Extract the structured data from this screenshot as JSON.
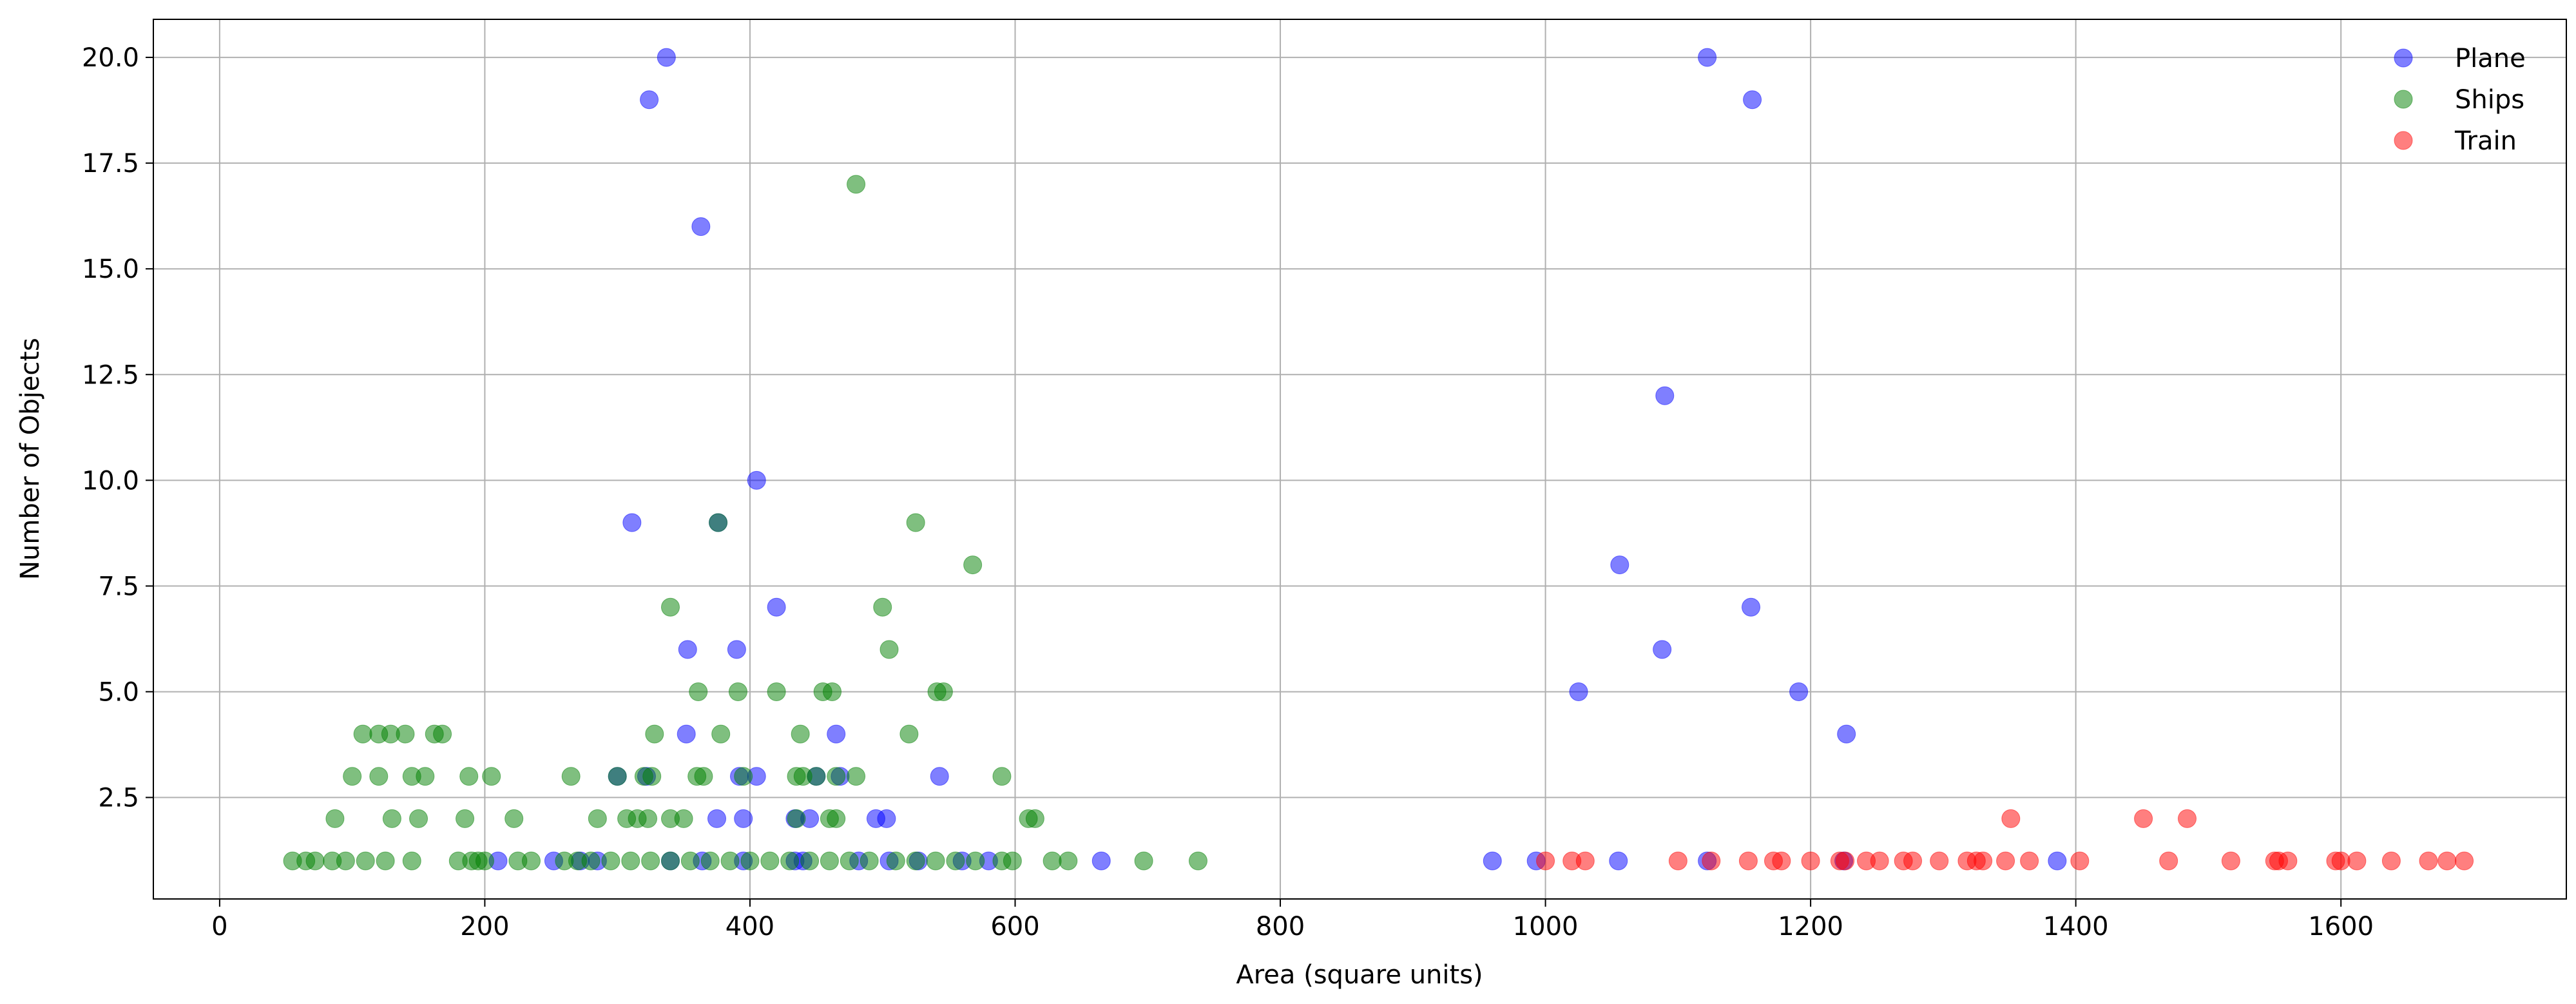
{
  "chart_data": {
    "type": "scatter",
    "xlabel": "Area (square units)",
    "ylabel": "Number of Objects",
    "xlim": [
      -50,
      1770
    ],
    "ylim": [
      0.1,
      20.9
    ],
    "xticks": [
      0,
      200,
      400,
      600,
      800,
      1000,
      1200,
      1400,
      1600
    ],
    "xtick_labels": [
      "0",
      "200",
      "400",
      "600",
      "800",
      "1000",
      "1200",
      "1400",
      "1600"
    ],
    "yticks": [
      2.5,
      5.0,
      7.5,
      10.0,
      12.5,
      15.0,
      17.5,
      20.0
    ],
    "ytick_labels": [
      "2.5",
      "5.0",
      "7.5",
      "10.0",
      "12.5",
      "15.0",
      "17.5",
      "20.0"
    ],
    "grid": true,
    "legend_position": "top-right",
    "series": [
      {
        "name": "Plane",
        "color": "#0000ff",
        "points": [
          [
            337,
            20
          ],
          [
            324,
            19
          ],
          [
            363,
            16
          ],
          [
            405,
            10
          ],
          [
            311,
            9
          ],
          [
            376,
            9
          ],
          [
            420,
            7
          ],
          [
            353,
            6
          ],
          [
            390,
            6
          ],
          [
            352,
            4
          ],
          [
            465,
            4
          ],
          [
            300,
            3
          ],
          [
            322,
            3
          ],
          [
            392,
            3
          ],
          [
            405,
            3
          ],
          [
            450,
            3
          ],
          [
            468,
            3
          ],
          [
            543,
            3
          ],
          [
            395,
            2
          ],
          [
            375,
            2
          ],
          [
            434,
            2
          ],
          [
            445,
            2
          ],
          [
            495,
            2
          ],
          [
            503,
            2
          ],
          [
            210,
            1
          ],
          [
            252,
            1
          ],
          [
            272,
            1
          ],
          [
            285,
            1
          ],
          [
            340,
            1
          ],
          [
            364,
            1
          ],
          [
            395,
            1
          ],
          [
            434,
            1
          ],
          [
            440,
            1
          ],
          [
            482,
            1
          ],
          [
            505,
            1
          ],
          [
            527,
            1
          ],
          [
            560,
            1
          ],
          [
            580,
            1
          ],
          [
            665,
            1
          ],
          [
            1122,
            20
          ],
          [
            1156,
            19
          ],
          [
            1090,
            12
          ],
          [
            1056,
            8
          ],
          [
            1155,
            7
          ],
          [
            1088,
            6
          ],
          [
            1025,
            5
          ],
          [
            1191,
            5
          ],
          [
            1227,
            4
          ],
          [
            960,
            1
          ],
          [
            993,
            1
          ],
          [
            1055,
            1
          ],
          [
            1122,
            1
          ],
          [
            1225,
            1
          ],
          [
            1386,
            1
          ]
        ]
      },
      {
        "name": "Ships",
        "color": "#008000",
        "points": [
          [
            480,
            17
          ],
          [
            525,
            9
          ],
          [
            376,
            9
          ],
          [
            568,
            8
          ],
          [
            340,
            7
          ],
          [
            500,
            7
          ],
          [
            505,
            6
          ],
          [
            361,
            5
          ],
          [
            391,
            5
          ],
          [
            420,
            5
          ],
          [
            455,
            5
          ],
          [
            462,
            5
          ],
          [
            541,
            5
          ],
          [
            546,
            5
          ],
          [
            108,
            4
          ],
          [
            120,
            4
          ],
          [
            129,
            4
          ],
          [
            140,
            4
          ],
          [
            162,
            4
          ],
          [
            168,
            4
          ],
          [
            328,
            4
          ],
          [
            378,
            4
          ],
          [
            438,
            4
          ],
          [
            520,
            4
          ],
          [
            100,
            3
          ],
          [
            120,
            3
          ],
          [
            145,
            3
          ],
          [
            155,
            3
          ],
          [
            188,
            3
          ],
          [
            205,
            3
          ],
          [
            265,
            3
          ],
          [
            300,
            3
          ],
          [
            320,
            3
          ],
          [
            326,
            3
          ],
          [
            360,
            3
          ],
          [
            365,
            3
          ],
          [
            395,
            3
          ],
          [
            435,
            3
          ],
          [
            440,
            3
          ],
          [
            450,
            3
          ],
          [
            465,
            3
          ],
          [
            480,
            3
          ],
          [
            590,
            3
          ],
          [
            87,
            2
          ],
          [
            130,
            2
          ],
          [
            150,
            2
          ],
          [
            185,
            2
          ],
          [
            222,
            2
          ],
          [
            285,
            2
          ],
          [
            307,
            2
          ],
          [
            315,
            2
          ],
          [
            323,
            2
          ],
          [
            340,
            2
          ],
          [
            350,
            2
          ],
          [
            435,
            2
          ],
          [
            460,
            2
          ],
          [
            465,
            2
          ],
          [
            610,
            2
          ],
          [
            615,
            2
          ],
          [
            55,
            1
          ],
          [
            65,
            1
          ],
          [
            72,
            1
          ],
          [
            85,
            1
          ],
          [
            95,
            1
          ],
          [
            110,
            1
          ],
          [
            125,
            1
          ],
          [
            145,
            1
          ],
          [
            180,
            1
          ],
          [
            190,
            1
          ],
          [
            195,
            1
          ],
          [
            200,
            1
          ],
          [
            225,
            1
          ],
          [
            235,
            1
          ],
          [
            260,
            1
          ],
          [
            270,
            1
          ],
          [
            280,
            1
          ],
          [
            295,
            1
          ],
          [
            310,
            1
          ],
          [
            325,
            1
          ],
          [
            340,
            1
          ],
          [
            355,
            1
          ],
          [
            370,
            1
          ],
          [
            385,
            1
          ],
          [
            400,
            1
          ],
          [
            415,
            1
          ],
          [
            430,
            1
          ],
          [
            445,
            1
          ],
          [
            460,
            1
          ],
          [
            475,
            1
          ],
          [
            490,
            1
          ],
          [
            510,
            1
          ],
          [
            525,
            1
          ],
          [
            540,
            1
          ],
          [
            555,
            1
          ],
          [
            570,
            1
          ],
          [
            590,
            1
          ],
          [
            598,
            1
          ],
          [
            628,
            1
          ],
          [
            640,
            1
          ],
          [
            697,
            1
          ],
          [
            738,
            1
          ]
        ]
      },
      {
        "name": "Train",
        "color": "#ff0000",
        "points": [
          [
            1351,
            2
          ],
          [
            1451,
            2
          ],
          [
            1484,
            2
          ],
          [
            1000,
            1
          ],
          [
            1020,
            1
          ],
          [
            1030,
            1
          ],
          [
            1100,
            1
          ],
          [
            1125,
            1
          ],
          [
            1153,
            1
          ],
          [
            1172,
            1
          ],
          [
            1178,
            1
          ],
          [
            1200,
            1
          ],
          [
            1222,
            1
          ],
          [
            1226,
            1
          ],
          [
            1242,
            1
          ],
          [
            1252,
            1
          ],
          [
            1270,
            1
          ],
          [
            1277,
            1
          ],
          [
            1297,
            1
          ],
          [
            1318,
            1
          ],
          [
            1325,
            1
          ],
          [
            1330,
            1
          ],
          [
            1347,
            1
          ],
          [
            1365,
            1
          ],
          [
            1403,
            1
          ],
          [
            1470,
            1
          ],
          [
            1517,
            1
          ],
          [
            1550,
            1
          ],
          [
            1553,
            1
          ],
          [
            1560,
            1
          ],
          [
            1596,
            1
          ],
          [
            1600,
            1
          ],
          [
            1612,
            1
          ],
          [
            1638,
            1
          ],
          [
            1666,
            1
          ],
          [
            1680,
            1
          ],
          [
            1693,
            1
          ]
        ]
      }
    ]
  }
}
